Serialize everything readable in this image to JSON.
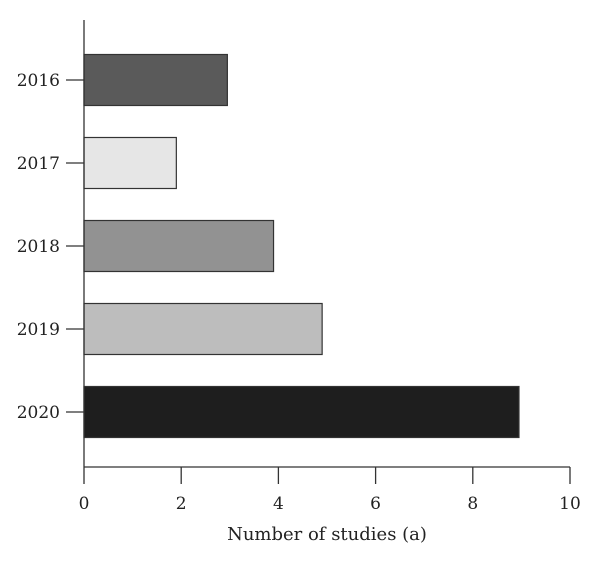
{
  "chart_data": {
    "type": "bar",
    "orientation": "horizontal",
    "title": "",
    "xlabel": "Number of studies (a)",
    "ylabel": "",
    "categories": [
      "2016",
      "2017",
      "2018",
      "2019",
      "2020"
    ],
    "values": [
      2.95,
      1.9,
      3.9,
      4.9,
      8.95
    ],
    "xlim": [
      0,
      10
    ],
    "xticks": [
      "0",
      "2",
      "4",
      "6",
      "8",
      "10"
    ],
    "grid": false,
    "legend": "none",
    "bar_colors": [
      "#5a5a5a",
      "#e6e6e6",
      "#929292",
      "#bdbdbd",
      "#1e1e1e"
    ]
  }
}
